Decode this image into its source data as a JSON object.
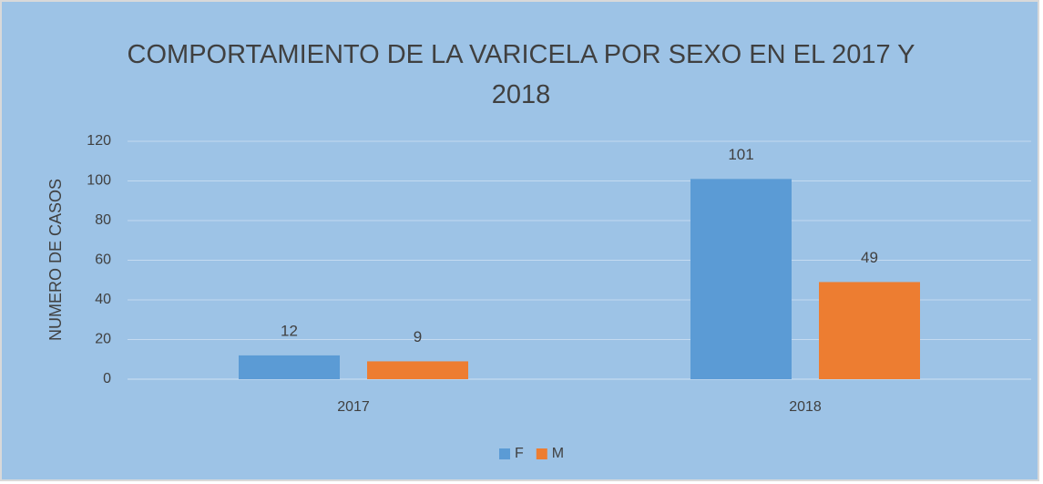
{
  "chart_data": {
    "type": "bar",
    "title": "COMPORTAMIENTO DE LA VARICELA POR SEXO EN EL 2017 Y 2018",
    "y_label": "NUMERO DE CASOS",
    "categories": [
      "2017",
      "2018"
    ],
    "series": [
      {
        "name": "F",
        "color": "#5b9bd5",
        "values": [
          12,
          101
        ]
      },
      {
        "name": "M",
        "color": "#ed7d31",
        "values": [
          9,
          49
        ]
      }
    ],
    "ylim": [
      0,
      120
    ],
    "yticks": [
      0,
      20,
      40,
      60,
      80,
      100,
      120
    ],
    "grid": true,
    "legend": "bottom"
  }
}
